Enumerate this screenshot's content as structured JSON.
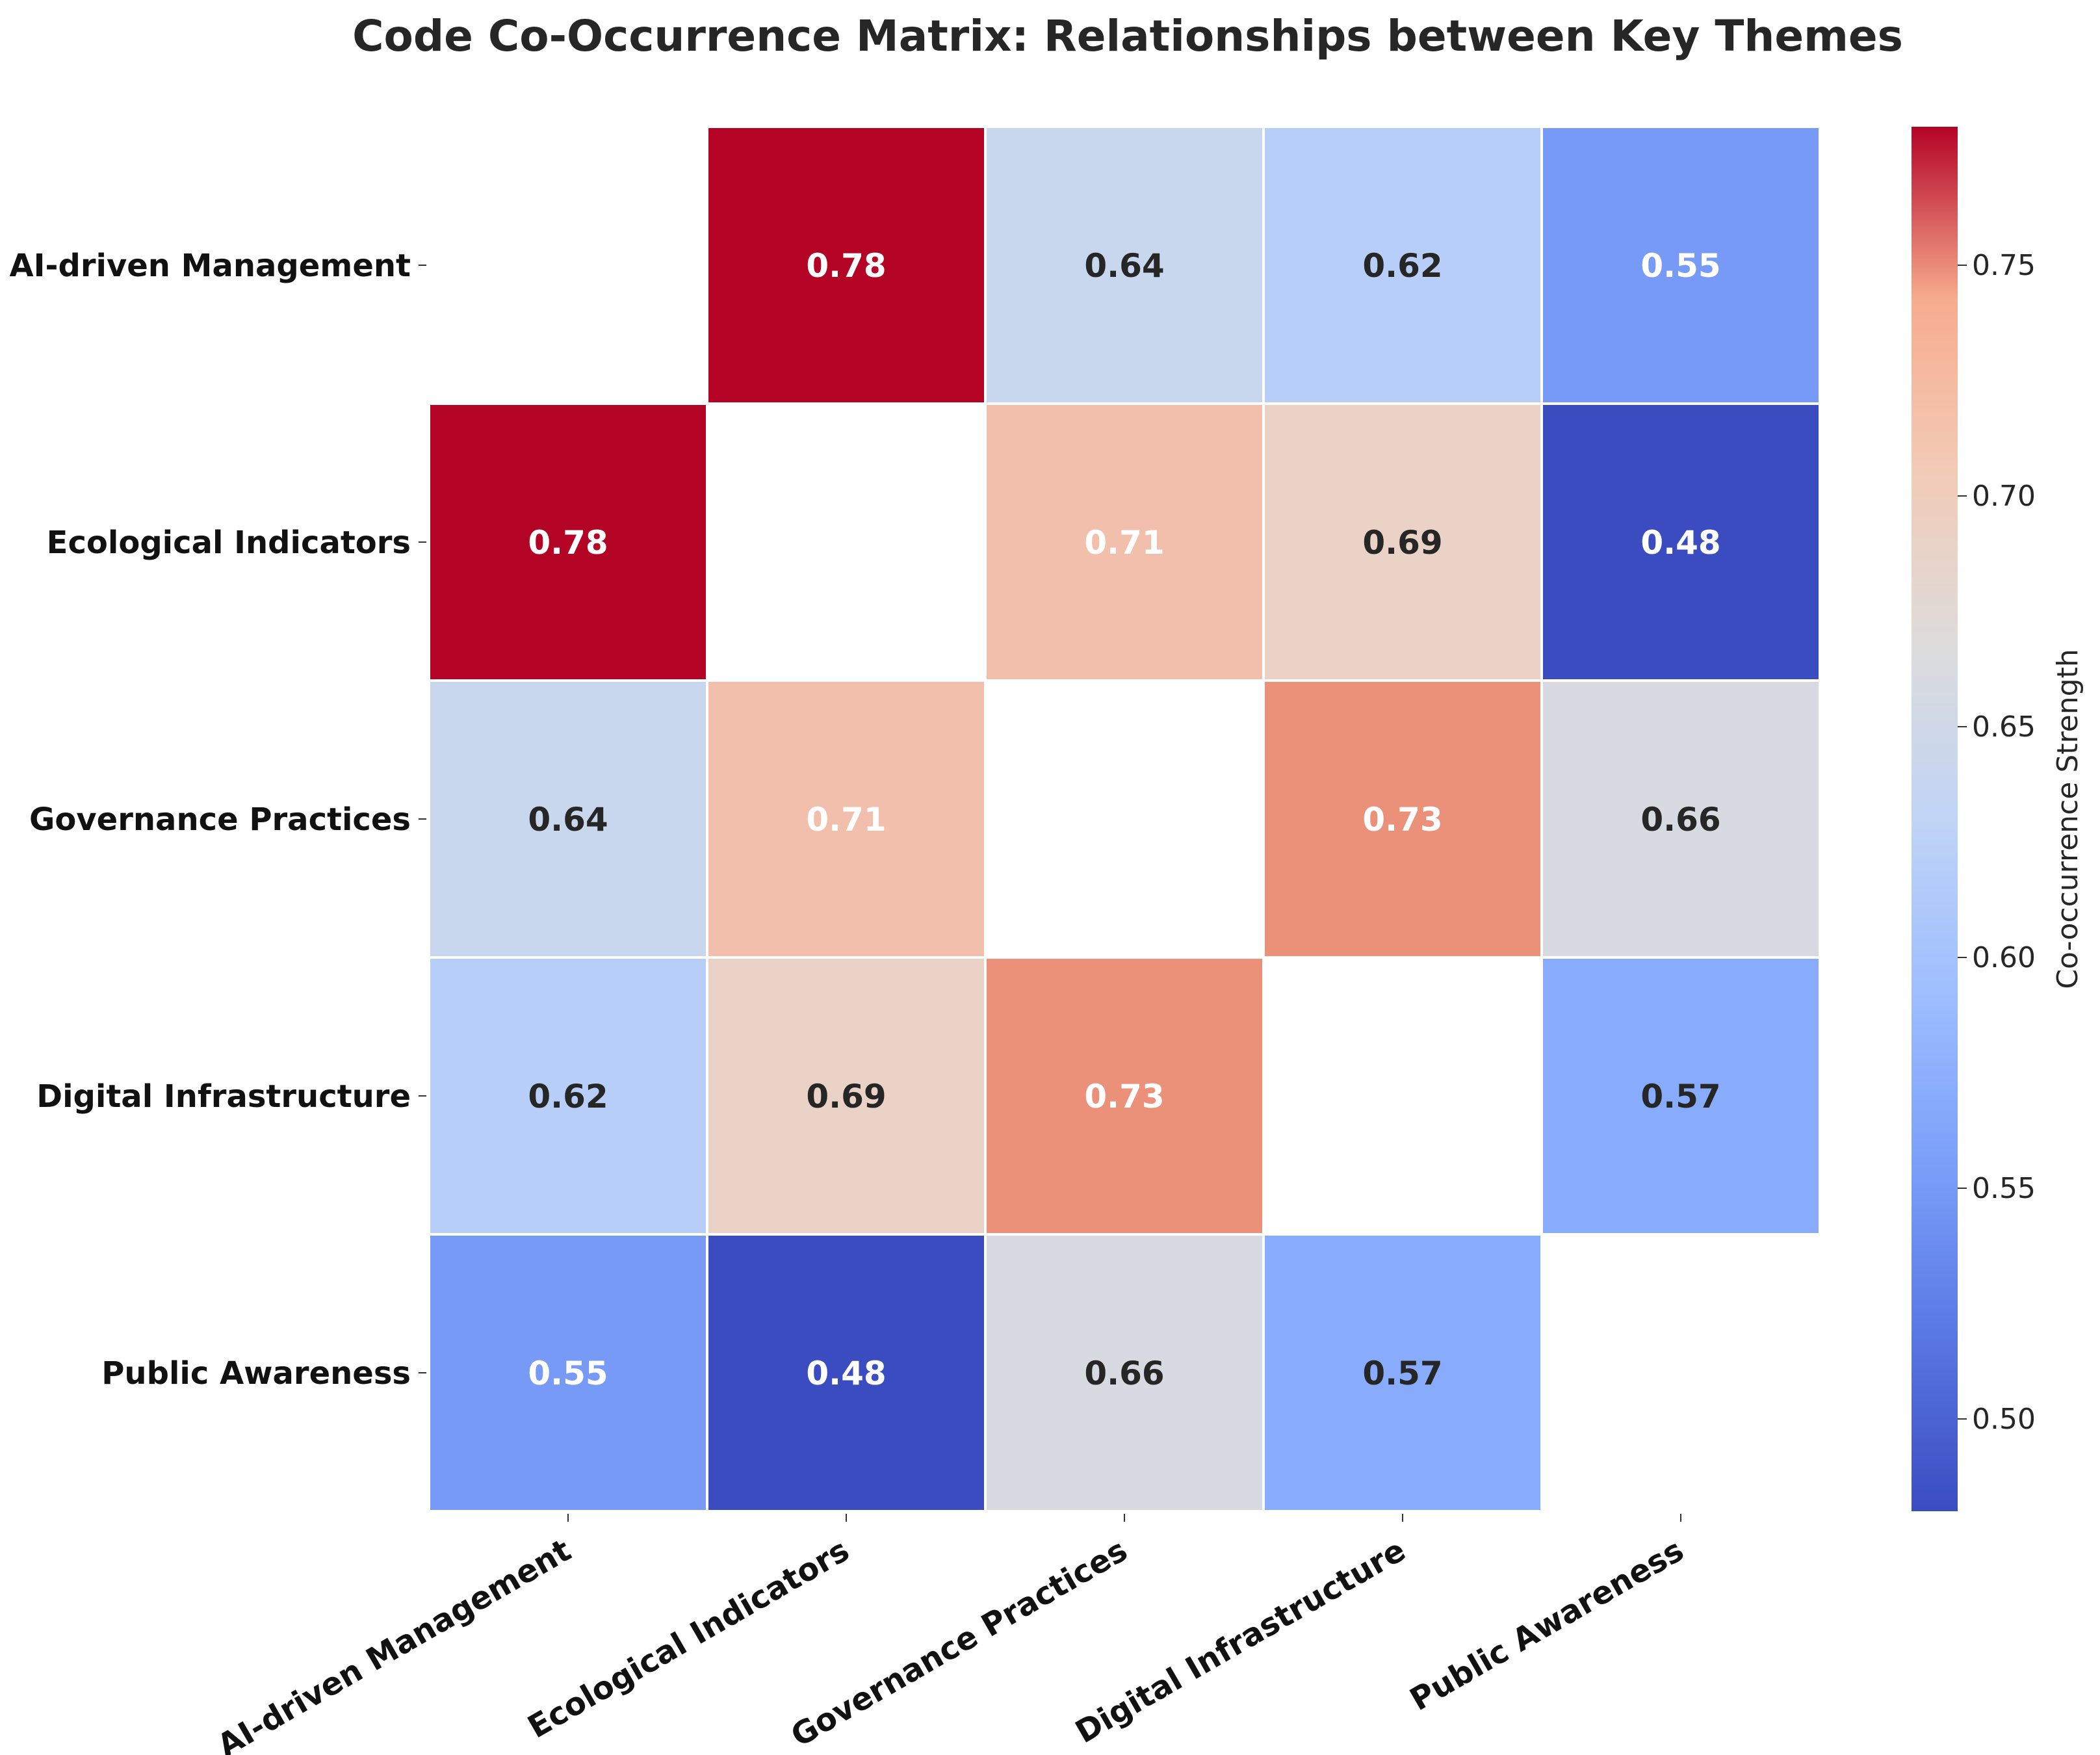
{
  "chart_data": {
    "type": "heatmap",
    "title": "Code Co-Occurrence Matrix: Relationships between Key Themes",
    "rows": [
      "AI-driven Management",
      "Ecological Indicators",
      "Governance Practices",
      "Digital Infrastructure",
      "Public Awareness"
    ],
    "columns": [
      "AI-driven Management",
      "Ecological Indicators",
      "Governance Practices",
      "Digital Infrastructure",
      "Public Awareness"
    ],
    "values": [
      [
        null,
        0.78,
        0.64,
        0.62,
        0.55
      ],
      [
        0.78,
        null,
        0.71,
        0.69,
        0.48
      ],
      [
        0.64,
        0.71,
        null,
        0.73,
        0.66
      ],
      [
        0.62,
        0.69,
        0.73,
        null,
        0.57
      ],
      [
        0.55,
        0.48,
        0.66,
        0.57,
        null
      ]
    ],
    "value_format": "0.00",
    "colormap": "coolwarm",
    "vmin": 0.48,
    "vmax": 0.78,
    "colorbar": {
      "label": "Co-occurrence Strength",
      "ticks": [
        0.5,
        0.55,
        0.6,
        0.65,
        0.7,
        0.75
      ],
      "tick_labels": [
        "0.50",
        "0.55",
        "0.60",
        "0.65",
        "0.70",
        "0.75"
      ]
    }
  }
}
